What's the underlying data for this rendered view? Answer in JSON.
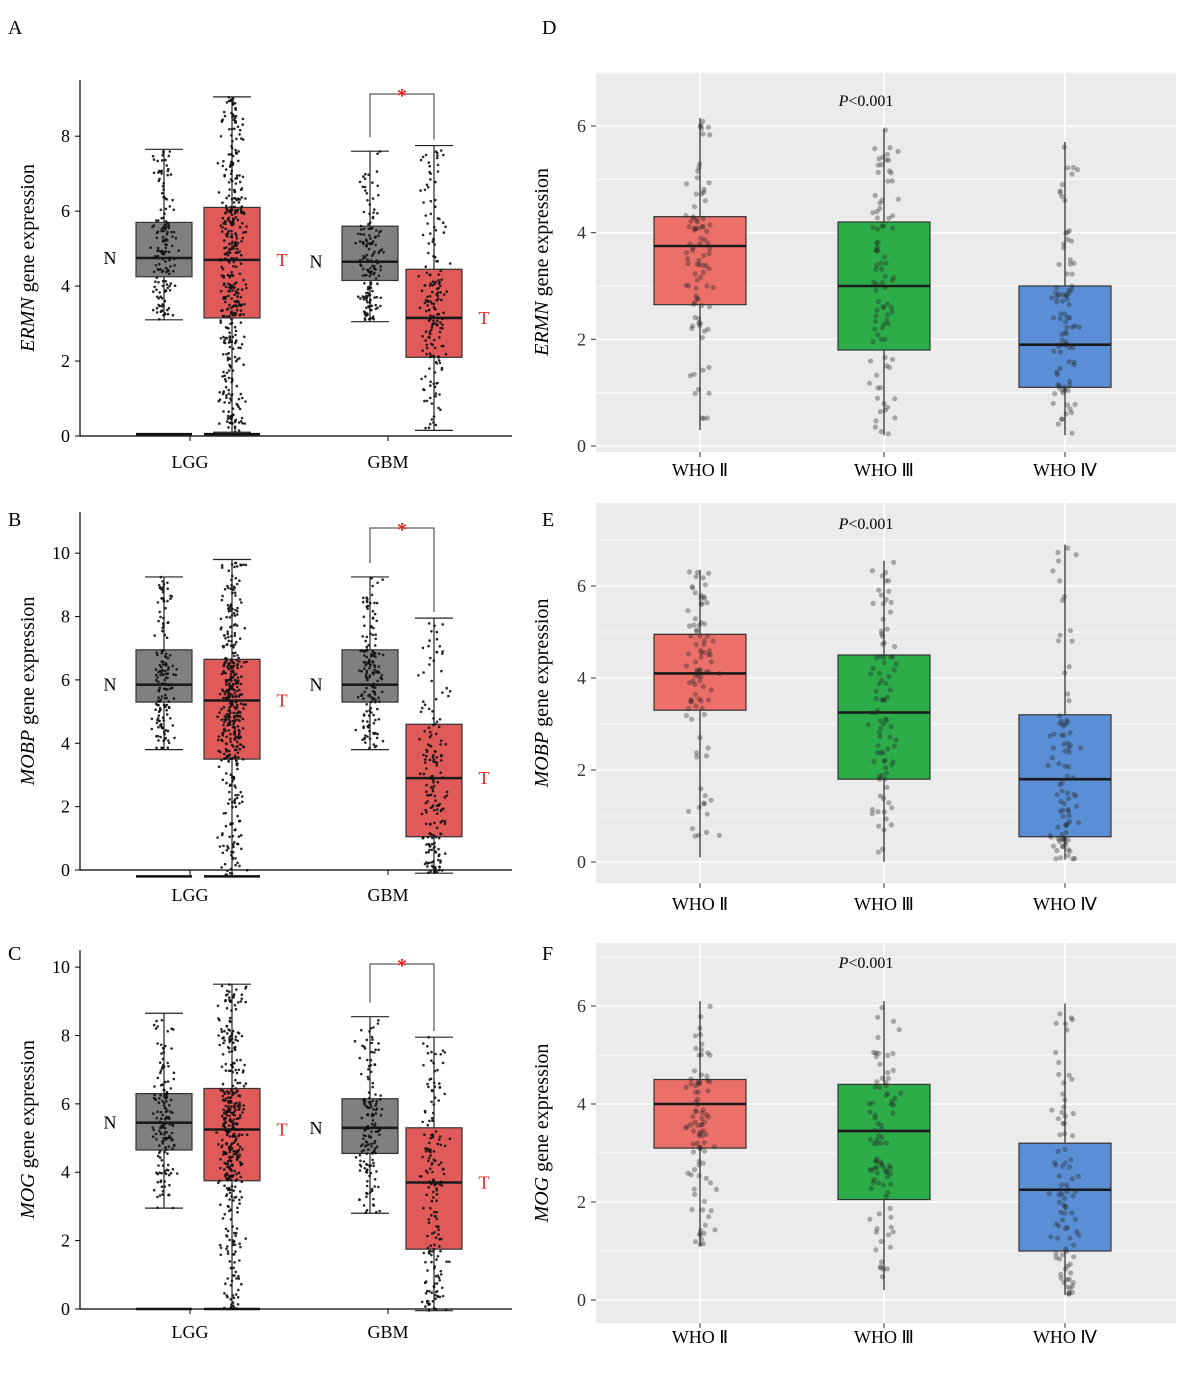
{
  "colors": {
    "normal_box": "#808080",
    "tumor_box": "#e05a5a",
    "star": "#e0251f",
    "who2": "#ec706a",
    "who3": "#2cad4a",
    "who4": "#5a8fd5",
    "panel_bg": "#ebebeb",
    "grid": "#ffffff"
  },
  "chart_data": [
    {
      "id": "A",
      "type": "box",
      "panel_label": "A",
      "gene": "ERMN",
      "ylabel_suffix": " gene expression",
      "ylim": [
        0,
        9.5
      ],
      "yticks": [
        0,
        2,
        4,
        6,
        8
      ],
      "groups": [
        {
          "category": "LGG",
          "N": {
            "label": "N",
            "min": 3.1,
            "q1": 4.25,
            "median": 4.75,
            "q3": 5.7,
            "max": 7.65,
            "zero_line": 0.05
          },
          "T": {
            "label": "T",
            "min": 0.1,
            "q1": 3.15,
            "median": 4.7,
            "q3": 6.1,
            "max": 9.05,
            "zero_line": 0.05
          },
          "star": false
        },
        {
          "category": "GBM",
          "N": {
            "label": "N",
            "min": 3.05,
            "q1": 4.15,
            "median": 4.65,
            "q3": 5.6,
            "max": 7.6
          },
          "T": {
            "label": "T",
            "min": 0.15,
            "q1": 2.1,
            "median": 3.15,
            "q3": 4.45,
            "max": 7.75
          },
          "star": true,
          "star_label": "*"
        }
      ]
    },
    {
      "id": "B",
      "type": "box",
      "panel_label": "B",
      "gene": "MOBP",
      "ylabel_suffix": " gene expression",
      "ylim": [
        0,
        11.3
      ],
      "yticks": [
        0,
        2,
        4,
        6,
        8,
        10
      ],
      "groups": [
        {
          "category": "LGG",
          "N": {
            "label": "N",
            "min": 3.8,
            "q1": 5.3,
            "median": 5.85,
            "q3": 6.95,
            "max": 9.25,
            "zero_line": -0.2
          },
          "T": {
            "label": "T",
            "min": -0.2,
            "q1": 3.5,
            "median": 5.35,
            "q3": 6.65,
            "max": 9.8,
            "zero_line": -0.2
          },
          "star": false
        },
        {
          "category": "GBM",
          "N": {
            "label": "N",
            "min": 3.8,
            "q1": 5.3,
            "median": 5.85,
            "q3": 6.95,
            "max": 9.25
          },
          "T": {
            "label": "T",
            "min": -0.1,
            "q1": 1.05,
            "median": 2.9,
            "q3": 4.6,
            "max": 7.95
          },
          "star": true,
          "star_label": "*"
        }
      ]
    },
    {
      "id": "C",
      "type": "box",
      "panel_label": "C",
      "gene": "MOG",
      "ylabel_suffix": " gene expression",
      "ylim": [
        0,
        10.5
      ],
      "yticks": [
        0,
        2,
        4,
        6,
        8,
        10
      ],
      "groups": [
        {
          "category": "LGG",
          "N": {
            "label": "N",
            "min": 2.95,
            "q1": 4.65,
            "median": 5.45,
            "q3": 6.3,
            "max": 8.65,
            "zero_line": 0.0
          },
          "T": {
            "label": "T",
            "min": 0.0,
            "q1": 3.75,
            "median": 5.25,
            "q3": 6.45,
            "max": 9.5,
            "zero_line": 0.0
          },
          "star": false
        },
        {
          "category": "GBM",
          "N": {
            "label": "N",
            "min": 2.8,
            "q1": 4.55,
            "median": 5.3,
            "q3": 6.15,
            "max": 8.55
          },
          "T": {
            "label": "T",
            "min": -0.05,
            "q1": 1.75,
            "median": 3.7,
            "q3": 5.3,
            "max": 7.95
          },
          "star": true,
          "star_label": "*"
        }
      ]
    },
    {
      "id": "D",
      "type": "box",
      "panel_label": "D",
      "gene": "ERMN",
      "ylabel_suffix": " gene expression",
      "annotation": "P<0.001",
      "ylim": [
        -0.15,
        6.95
      ],
      "yticks": [
        0,
        2,
        4,
        6
      ],
      "categories": [
        "WHO Ⅱ",
        "WHO Ⅲ",
        "WHO Ⅳ"
      ],
      "boxes": [
        {
          "min": 0.3,
          "q1": 2.65,
          "median": 3.75,
          "q3": 4.3,
          "max": 6.15
        },
        {
          "min": 0.2,
          "q1": 1.8,
          "median": 3.0,
          "q3": 4.2,
          "max": 5.95
        },
        {
          "min": 0.2,
          "q1": 1.1,
          "median": 1.9,
          "q3": 3.0,
          "max": 5.7
        }
      ]
    },
    {
      "id": "E",
      "type": "box",
      "panel_label": "E",
      "gene": "MOBP",
      "ylabel_suffix": " gene expression",
      "annotation": "P<0.001",
      "ylim": [
        -0.35,
        7.15
      ],
      "yticks": [
        0,
        2,
        4,
        6
      ],
      "categories": [
        "WHO Ⅱ",
        "WHO Ⅲ",
        "WHO Ⅳ"
      ],
      "boxes": [
        {
          "min": 0.1,
          "q1": 3.3,
          "median": 4.1,
          "q3": 4.95,
          "max": 6.35
        },
        {
          "min": 0.0,
          "q1": 1.8,
          "median": 3.25,
          "q3": 4.5,
          "max": 6.55
        },
        {
          "min": 0.05,
          "q1": 0.55,
          "median": 1.8,
          "q3": 3.2,
          "max": 6.9
        }
      ]
    },
    {
      "id": "F",
      "type": "box",
      "panel_label": "F",
      "gene": "MOG",
      "ylabel_suffix": " gene expression",
      "annotation": "P<0.001",
      "ylim": [
        -0.3,
        7.2
      ],
      "yticks": [
        0,
        2,
        4,
        6
      ],
      "categories": [
        "WHO Ⅱ",
        "WHO Ⅲ",
        "WHO Ⅳ"
      ],
      "boxes": [
        {
          "min": 1.1,
          "q1": 3.1,
          "median": 4.0,
          "q3": 4.5,
          "max": 6.1
        },
        {
          "min": 0.2,
          "q1": 2.05,
          "median": 3.45,
          "q3": 4.4,
          "max": 6.1
        },
        {
          "min": 0.1,
          "q1": 1.0,
          "median": 2.25,
          "q3": 3.2,
          "max": 6.05
        }
      ]
    }
  ]
}
